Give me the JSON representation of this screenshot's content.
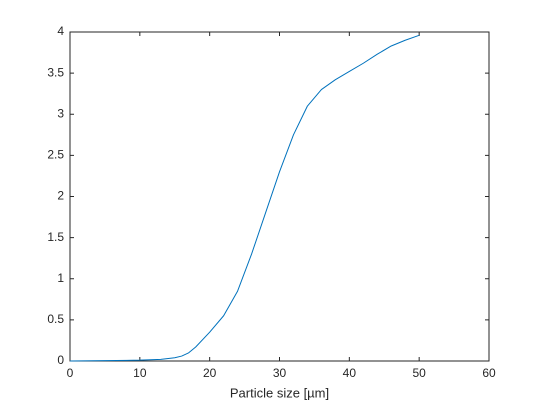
{
  "chart_data": {
    "type": "line",
    "x_label": "Particle size [µm]",
    "x": [
      0,
      5,
      10,
      13,
      15,
      16,
      17,
      18,
      20,
      22,
      24,
      26,
      28,
      30,
      32,
      34,
      36,
      38,
      40,
      42,
      44,
      46,
      48,
      50
    ],
    "values": [
      0,
      0.005,
      0.01,
      0.02,
      0.04,
      0.06,
      0.1,
      0.17,
      0.35,
      0.55,
      0.85,
      1.3,
      1.8,
      2.3,
      2.75,
      3.1,
      3.3,
      3.42,
      3.52,
      3.62,
      3.73,
      3.83,
      3.9,
      3.96
    ],
    "color": "#0072bd",
    "xlim": [
      0,
      60
    ],
    "xticks": [
      0,
      10,
      20,
      30,
      40,
      50,
      60
    ],
    "ylim": [
      0,
      4
    ],
    "yticks": [
      0,
      0.5,
      1,
      1.5,
      2,
      2.5,
      3,
      3.5,
      4
    ],
    "grid": false
  }
}
